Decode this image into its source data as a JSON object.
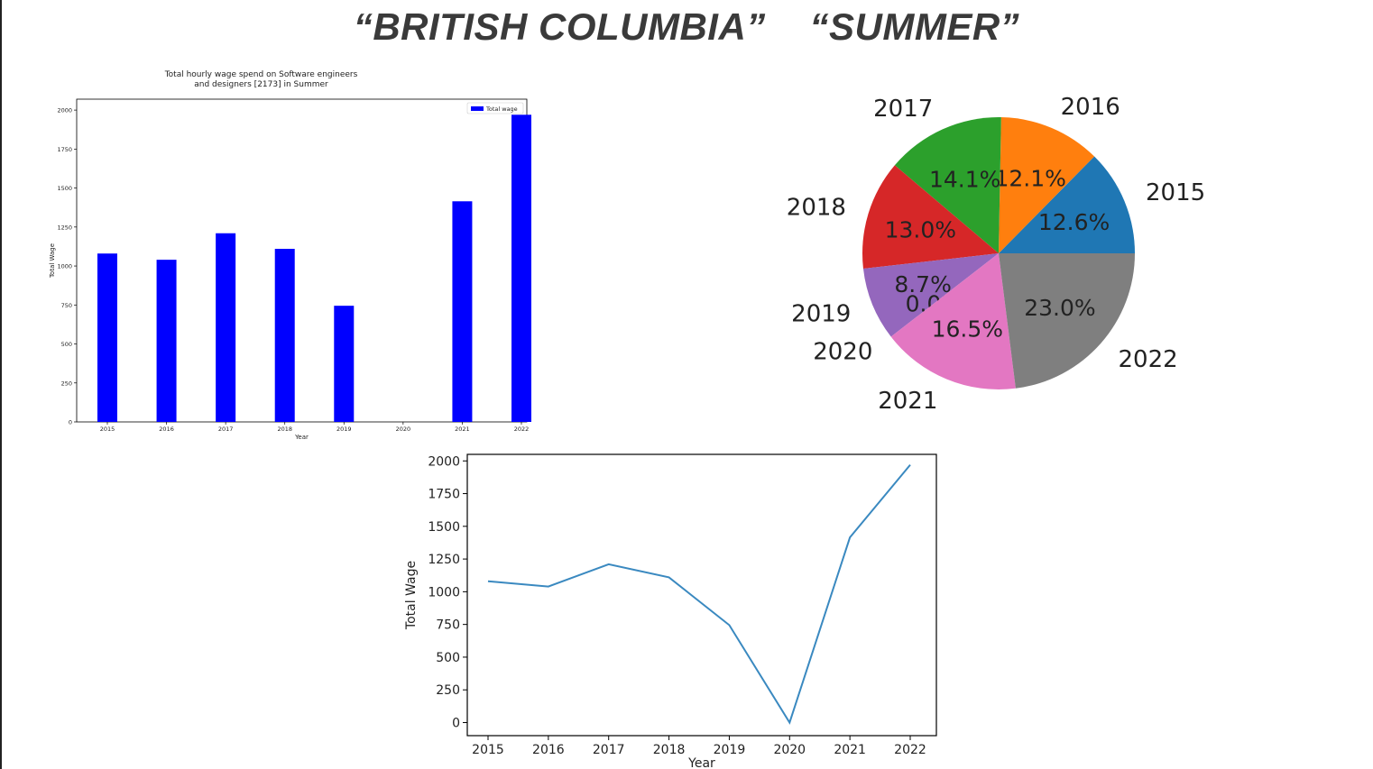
{
  "slide": {
    "title_part1": "“BRITISH COLUMBIA”",
    "title_part2": "“SUMMER”",
    "title_color": "#3a3a3a"
  },
  "chart_data": [
    {
      "type": "bar",
      "title": "Total hourly wage spend on Software engineers\nand designers [2173] in Summer",
      "xlabel": "Year",
      "ylabel": "Total Wage",
      "categories": [
        "2015",
        "2016",
        "2017",
        "2018",
        "2019",
        "2020",
        "2021",
        "2022"
      ],
      "values": [
        1080,
        1040,
        1210,
        1110,
        745,
        0,
        1415,
        1970
      ],
      "yticks": [
        0,
        250,
        500,
        750,
        1000,
        1250,
        1500,
        1750,
        2000
      ],
      "ylim": [
        0,
        2000
      ],
      "legend": [
        "Total wage"
      ],
      "legend_position": "top-right",
      "color": "#0000ff",
      "grid": false
    },
    {
      "type": "pie",
      "labels": [
        "2015",
        "2016",
        "2017",
        "2018",
        "2019",
        "2020",
        "2021",
        "2022"
      ],
      "values": [
        12.6,
        12.1,
        14.1,
        13.0,
        8.7,
        0.0,
        16.5,
        23.0
      ],
      "value_labels": [
        "12.6%",
        "12.1%",
        "14.1%",
        "13.0%",
        "8.7%",
        "0.0%",
        "16.5%",
        "23.0%"
      ],
      "colors": [
        "#1f77b4",
        "#ff7f0e",
        "#2ca02c",
        "#d62728",
        "#9467bd",
        "#8c564b",
        "#e377c2",
        "#7f7f7f"
      ]
    },
    {
      "type": "line",
      "xlabel": "Year",
      "ylabel": "Total Wage",
      "categories": [
        "2015",
        "2016",
        "2017",
        "2018",
        "2019",
        "2020",
        "2021",
        "2022"
      ],
      "values": [
        1080,
        1040,
        1210,
        1110,
        745,
        0,
        1415,
        1970
      ],
      "yticks": [
        0,
        250,
        500,
        750,
        1000,
        1250,
        1500,
        1750,
        2000
      ],
      "ylim": [
        -100,
        2050
      ],
      "color": "#3a89c0",
      "grid": false
    }
  ]
}
